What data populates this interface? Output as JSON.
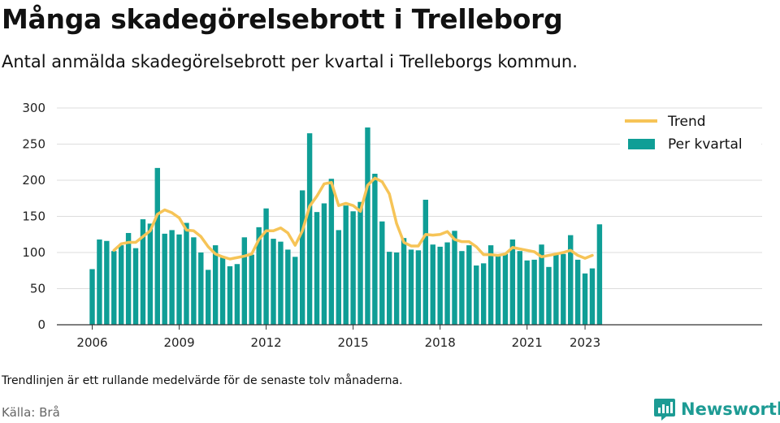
{
  "header": {
    "title": "Många skadegörelsebrott i Trelleborg",
    "subtitle": "Antal anmälda skadegörelsebrott per kvartal i Trelleborgs kommun."
  },
  "footer": {
    "note": "Trendlinjen är ett rullande medelvärde för de senaste tolv månaderna.",
    "source": "Källa: Brå",
    "brand": "Newsworthy"
  },
  "colors": {
    "bar": "#0f9e96",
    "trend": "#f6c457",
    "grid": "#dddddd",
    "axis": "#333333",
    "brand": "#1d9b94"
  },
  "chart_data": {
    "type": "bar",
    "x_start": "2006 Q1",
    "x_tick_labels": [
      "2006",
      "2009",
      "2012",
      "2015",
      "2018",
      "2021",
      "2023"
    ],
    "x_tick_years": [
      2006,
      2009,
      2012,
      2015,
      2018,
      2021,
      2023
    ],
    "y_ticks": [
      0,
      50,
      100,
      150,
      200,
      250,
      300
    ],
    "ylim": [
      0,
      300
    ],
    "grid": true,
    "legend_position": "top-right",
    "series": [
      {
        "name": "Per kvartal",
        "type": "bar",
        "values": [
          77,
          118,
          116,
          102,
          110,
          127,
          106,
          146,
          140,
          217,
          126,
          131,
          125,
          141,
          121,
          100,
          76,
          110,
          93,
          81,
          84,
          121,
          97,
          135,
          161,
          119,
          115,
          104,
          94,
          186,
          265,
          156,
          168,
          202,
          131,
          165,
          157,
          170,
          273,
          209,
          143,
          101,
          100,
          120,
          104,
          103,
          173,
          111,
          108,
          114,
          130,
          102,
          110,
          82,
          85,
          110,
          96,
          98,
          118,
          102,
          89,
          90,
          111,
          80,
          97,
          98,
          124,
          90,
          71,
          78,
          139
        ]
      },
      {
        "name": "Trend",
        "type": "line",
        "values": [
          null,
          null,
          null,
          103,
          112,
          114,
          114,
          122,
          130,
          153,
          159,
          155,
          148,
          131,
          130,
          122,
          108,
          98,
          94,
          91,
          93,
          95,
          98,
          118,
          130,
          130,
          134,
          127,
          110,
          130,
          164,
          178,
          195,
          197,
          165,
          168,
          165,
          157,
          193,
          203,
          198,
          181,
          140,
          114,
          109,
          109,
          125,
          124,
          125,
          129,
          118,
          115,
          115,
          108,
          97,
          97,
          96,
          98,
          107,
          105,
          103,
          101,
          94,
          96,
          98,
          100,
          103,
          96,
          92,
          96
        ]
      }
    ]
  }
}
